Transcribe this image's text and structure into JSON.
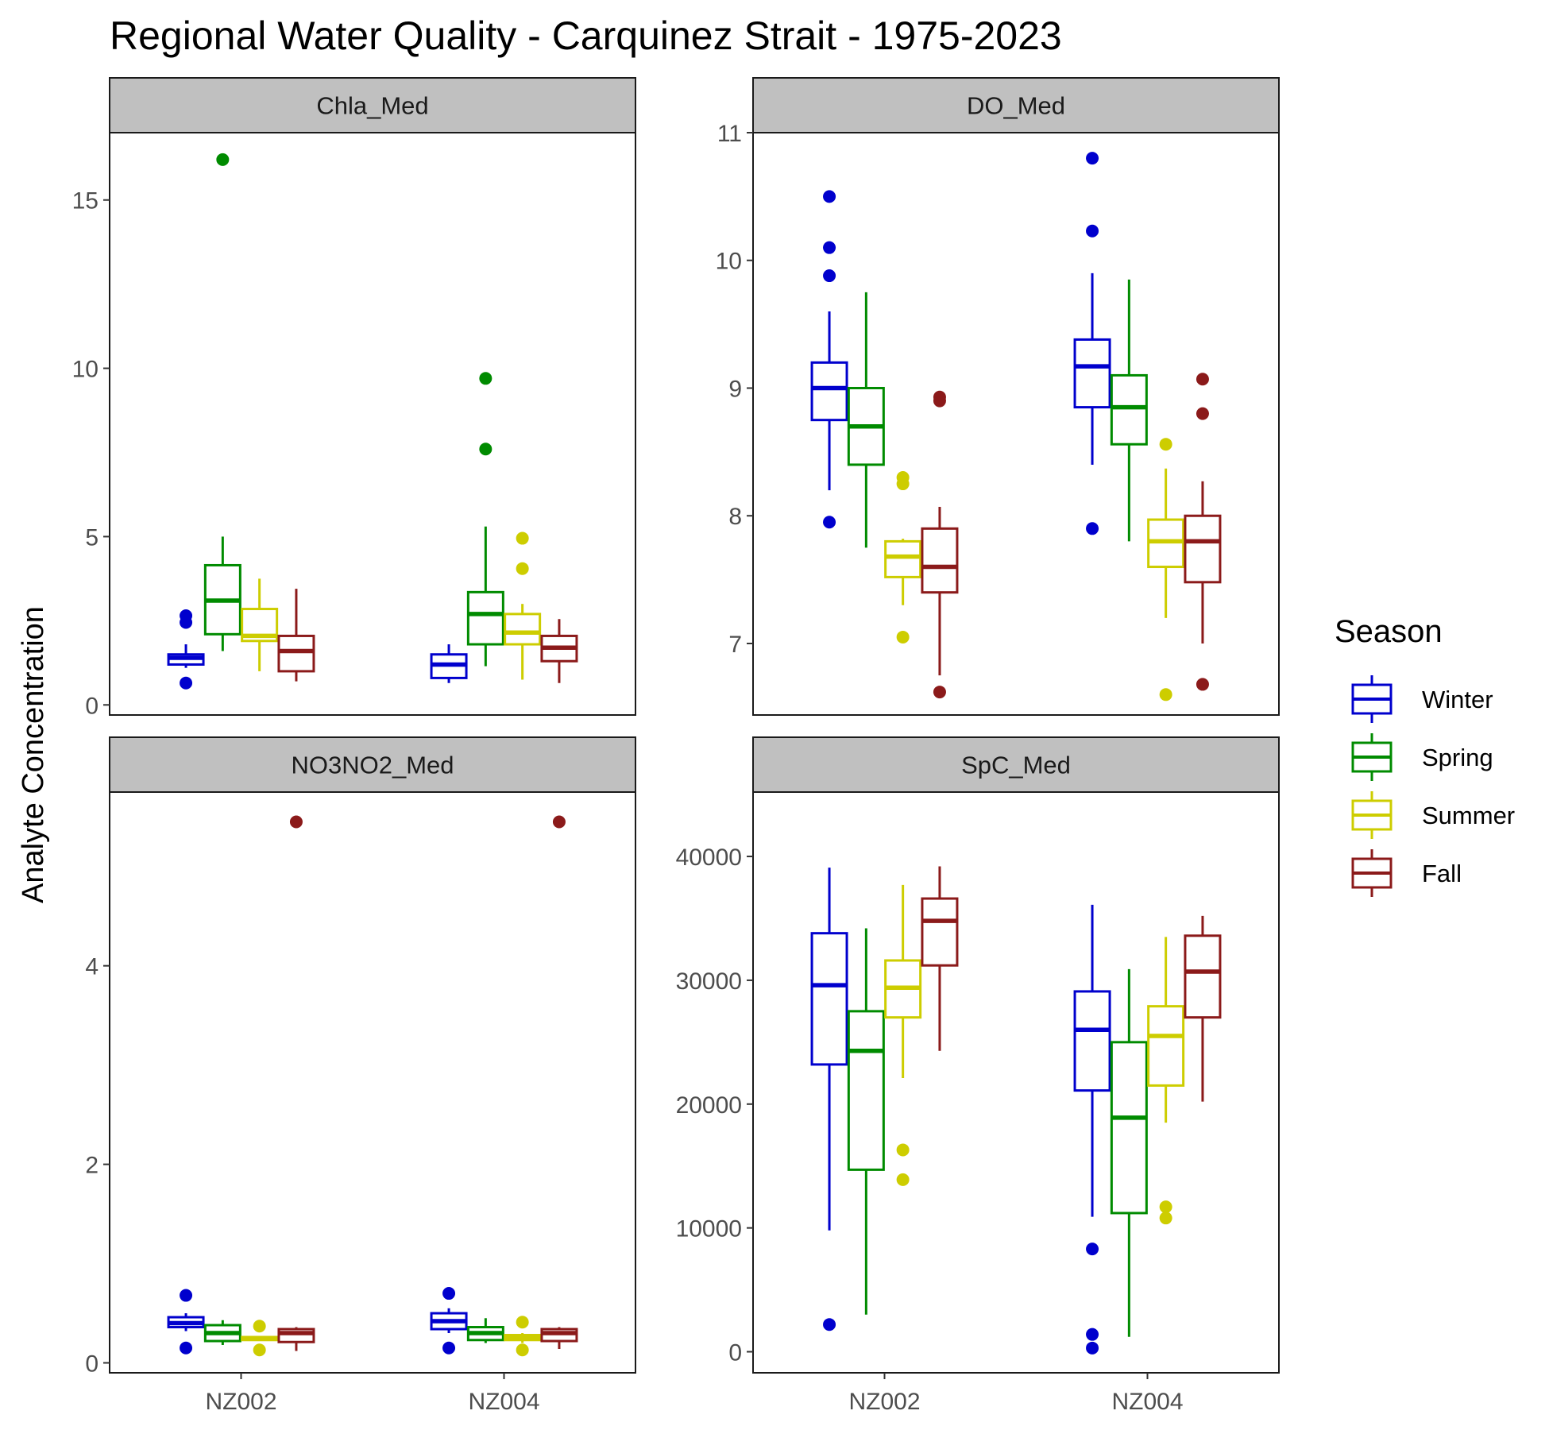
{
  "chart_data": {
    "type": "boxplot",
    "title": "Regional Water Quality - Carquinez Strait - 1975-2023",
    "ylabel": "Analyte Concentration",
    "xlabel": "",
    "categories": [
      "NZ002",
      "NZ004"
    ],
    "legend": {
      "title": "Season",
      "placement": "right",
      "entries": [
        "Winter",
        "Spring",
        "Summer",
        "Fall"
      ]
    },
    "colors": {
      "Winter": "#0000CD",
      "Spring": "#008B00",
      "Summer": "#CDCD00",
      "Fall": "#8B1A1A"
    },
    "grid": false,
    "panels": [
      {
        "name": "Chla_Med",
        "ylim": [
          -0.3,
          17.0
        ],
        "yticks": [
          0,
          5,
          10,
          15
        ],
        "yticklabels": [
          "0",
          "5",
          "10",
          "15"
        ],
        "stations": [
          {
            "station": "NZ002",
            "seasons": [
              {
                "season": "Winter",
                "low": 1.1,
                "q1": 1.2,
                "median": 1.4,
                "q3": 1.5,
                "high": 1.8,
                "outliers": [
                  0.65,
                  2.45,
                  2.65
                ]
              },
              {
                "season": "Spring",
                "low": 1.6,
                "q1": 2.1,
                "median": 3.1,
                "q3": 4.15,
                "high": 5.0,
                "outliers": [
                  16.2
                ]
              },
              {
                "season": "Summer",
                "low": 1.0,
                "q1": 1.9,
                "median": 2.05,
                "q3": 2.85,
                "high": 3.75,
                "outliers": []
              },
              {
                "season": "Fall",
                "low": 0.7,
                "q1": 1.0,
                "median": 1.6,
                "q3": 2.05,
                "high": 3.45,
                "outliers": []
              }
            ]
          },
          {
            "station": "NZ004",
            "seasons": [
              {
                "season": "Winter",
                "low": 0.65,
                "q1": 0.8,
                "median": 1.2,
                "q3": 1.5,
                "high": 1.8,
                "outliers": []
              },
              {
                "season": "Spring",
                "low": 1.15,
                "q1": 1.8,
                "median": 2.7,
                "q3": 3.35,
                "high": 5.3,
                "outliers": [
                  7.6,
                  9.7
                ]
              },
              {
                "season": "Summer",
                "low": 0.75,
                "q1": 1.8,
                "median": 2.15,
                "q3": 2.7,
                "high": 3.0,
                "outliers": [
                  4.05,
                  4.95
                ]
              },
              {
                "season": "Fall",
                "low": 0.65,
                "q1": 1.3,
                "median": 1.7,
                "q3": 2.05,
                "high": 2.55,
                "outliers": []
              }
            ]
          }
        ]
      },
      {
        "name": "DO_Med",
        "ylim": [
          6.44,
          11.0
        ],
        "yticks": [
          7,
          8,
          9,
          10,
          11
        ],
        "yticklabels": [
          "7",
          "8",
          "9",
          "10",
          "11"
        ],
        "stations": [
          {
            "station": "NZ002",
            "seasons": [
              {
                "season": "Winter",
                "low": 8.2,
                "q1": 8.75,
                "median": 9.0,
                "q3": 9.2,
                "high": 9.6,
                "outliers": [
                  7.95,
                  9.88,
                  10.1,
                  10.5
                ]
              },
              {
                "season": "Spring",
                "low": 7.75,
                "q1": 8.4,
                "median": 8.7,
                "q3": 9.0,
                "high": 9.75,
                "outliers": []
              },
              {
                "season": "Summer",
                "low": 7.3,
                "q1": 7.52,
                "median": 7.68,
                "q3": 7.8,
                "high": 7.82,
                "outliers": [
                  7.05,
                  8.25,
                  8.3
                ]
              },
              {
                "season": "Fall",
                "low": 6.75,
                "q1": 7.4,
                "median": 7.6,
                "q3": 7.9,
                "high": 8.07,
                "outliers": [
                  6.62,
                  8.9,
                  8.93
                ]
              }
            ]
          },
          {
            "station": "NZ004",
            "seasons": [
              {
                "season": "Winter",
                "low": 8.4,
                "q1": 8.85,
                "median": 9.17,
                "q3": 9.38,
                "high": 9.9,
                "outliers": [
                  7.9,
                  10.23,
                  10.8
                ]
              },
              {
                "season": "Spring",
                "low": 7.8,
                "q1": 8.56,
                "median": 8.85,
                "q3": 9.1,
                "high": 9.85,
                "outliers": []
              },
              {
                "season": "Summer",
                "low": 7.2,
                "q1": 7.6,
                "median": 7.8,
                "q3": 7.97,
                "high": 8.37,
                "outliers": [
                  6.6,
                  8.56
                ]
              },
              {
                "season": "Fall",
                "low": 7.0,
                "q1": 7.48,
                "median": 7.8,
                "q3": 8.0,
                "high": 8.27,
                "outliers": [
                  6.68,
                  8.8,
                  9.07
                ]
              }
            ]
          }
        ]
      },
      {
        "name": "NO3NO2_Med",
        "ylim": [
          -0.1,
          5.75
        ],
        "yticks": [
          0,
          2,
          4
        ],
        "yticklabels": [
          "0",
          "2",
          "4"
        ],
        "stations": [
          {
            "station": "NZ002",
            "seasons": [
              {
                "season": "Winter",
                "low": 0.32,
                "q1": 0.36,
                "median": 0.4,
                "q3": 0.46,
                "high": 0.5,
                "outliers": [
                  0.15,
                  0.68
                ]
              },
              {
                "season": "Spring",
                "low": 0.18,
                "q1": 0.22,
                "median": 0.3,
                "q3": 0.38,
                "high": 0.43,
                "outliers": []
              },
              {
                "season": "Summer",
                "low": 0.22,
                "q1": 0.23,
                "median": 0.25,
                "q3": 0.26,
                "high": 0.27,
                "outliers": [
                  0.13,
                  0.37
                ]
              },
              {
                "season": "Fall",
                "low": 0.12,
                "q1": 0.21,
                "median": 0.3,
                "q3": 0.34,
                "high": 0.36,
                "outliers": [
                  5.45
                ]
              }
            ]
          },
          {
            "station": "NZ004",
            "seasons": [
              {
                "season": "Winter",
                "low": 0.3,
                "q1": 0.34,
                "median": 0.42,
                "q3": 0.5,
                "high": 0.55,
                "outliers": [
                  0.15,
                  0.7
                ]
              },
              {
                "season": "Spring",
                "low": 0.2,
                "q1": 0.23,
                "median": 0.3,
                "q3": 0.36,
                "high": 0.45,
                "outliers": []
              },
              {
                "season": "Summer",
                "low": 0.2,
                "q1": 0.23,
                "median": 0.26,
                "q3": 0.28,
                "high": 0.3,
                "outliers": [
                  0.13,
                  0.41
                ]
              },
              {
                "season": "Fall",
                "low": 0.14,
                "q1": 0.22,
                "median": 0.3,
                "q3": 0.34,
                "high": 0.36,
                "outliers": [
                  5.45
                ]
              }
            ]
          }
        ]
      },
      {
        "name": "SpC_Med",
        "ylim": [
          -1700,
          45200
        ],
        "yticks": [
          0,
          10000,
          20000,
          30000,
          40000
        ],
        "yticklabels": [
          "0",
          "10000",
          "20000",
          "30000",
          "40000"
        ],
        "stations": [
          {
            "station": "NZ002",
            "seasons": [
              {
                "season": "Winter",
                "low": 9800,
                "q1": 23200,
                "median": 29600,
                "q3": 33800,
                "high": 39100,
                "outliers": [
                  2200
                ]
              },
              {
                "season": "Spring",
                "low": 3000,
                "q1": 14700,
                "median": 24300,
                "q3": 27500,
                "high": 34200,
                "outliers": []
              },
              {
                "season": "Summer",
                "low": 22100,
                "q1": 27000,
                "median": 29400,
                "q3": 31600,
                "high": 37700,
                "outliers": [
                  13900,
                  16300
                ]
              },
              {
                "season": "Fall",
                "low": 24300,
                "q1": 31200,
                "median": 34800,
                "q3": 36600,
                "high": 39200,
                "outliers": []
              }
            ]
          },
          {
            "station": "NZ004",
            "seasons": [
              {
                "season": "Winter",
                "low": 10900,
                "q1": 21100,
                "median": 26000,
                "q3": 29100,
                "high": 36100,
                "outliers": [
                  300,
                  1400,
                  8300
                ]
              },
              {
                "season": "Spring",
                "low": 1200,
                "q1": 11200,
                "median": 18900,
                "q3": 25000,
                "high": 30900,
                "outliers": []
              },
              {
                "season": "Summer",
                "low": 18500,
                "q1": 21500,
                "median": 25500,
                "q3": 27900,
                "high": 33500,
                "outliers": [
                  10800,
                  11700
                ]
              },
              {
                "season": "Fall",
                "low": 20200,
                "q1": 27000,
                "median": 30700,
                "q3": 33600,
                "high": 35200,
                "outliers": []
              }
            ]
          }
        ]
      }
    ]
  }
}
